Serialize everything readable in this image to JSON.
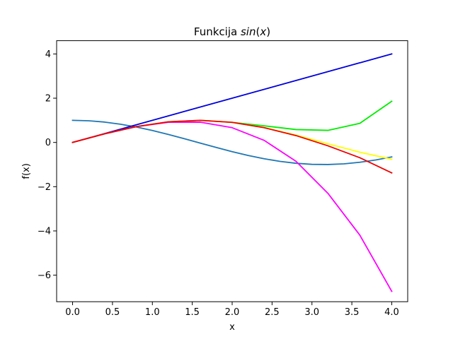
{
  "chart_data": {
    "type": "line",
    "title": {
      "prefix": "Funkcija ",
      "math": "sin",
      "suffix": "(",
      "math_var": "x",
      "close": ")"
    },
    "xlabel": "x",
    "ylabel": "f(x)",
    "xlim": [
      -0.2,
      4.2
    ],
    "ylim": [
      -7.2,
      4.6
    ],
    "x_ticks": [
      0.0,
      0.5,
      1.0,
      1.5,
      2.0,
      2.5,
      3.0,
      3.5,
      4.0
    ],
    "x_tick_labels": [
      "0.0",
      "0.5",
      "1.0",
      "1.5",
      "2.0",
      "2.5",
      "3.0",
      "3.5",
      "4.0"
    ],
    "y_ticks": [
      -6,
      -4,
      -2,
      0,
      2,
      4
    ],
    "y_tick_labels": [
      "−6",
      "−4",
      "−2",
      "0",
      "2",
      "4"
    ],
    "grid": false,
    "legend": "none",
    "series": [
      {
        "color": "#1f77b4",
        "function": "cos",
        "x": [
          0,
          0.2,
          0.4,
          0.6,
          0.8,
          1.0,
          1.2,
          1.4,
          1.6,
          1.8,
          2.0,
          2.2,
          2.4,
          2.6,
          2.8,
          3.0,
          3.2,
          3.4,
          3.6,
          3.8,
          4.0
        ],
        "y": [
          1.0,
          0.98,
          0.921,
          0.825,
          0.697,
          0.54,
          0.362,
          0.17,
          -0.029,
          -0.227,
          -0.416,
          -0.589,
          -0.737,
          -0.857,
          -0.942,
          -0.99,
          -0.998,
          -0.967,
          -0.897,
          -0.791,
          -0.654
        ]
      },
      {
        "color": "#0000dd",
        "x": [
          0,
          4.0
        ],
        "y": [
          0,
          4.0
        ]
      },
      {
        "color": "#00ee00",
        "x": [
          0,
          0.4,
          0.8,
          1.2,
          1.6,
          2.0,
          2.4,
          2.8,
          3.2,
          3.6,
          4.0
        ],
        "y": [
          0,
          0.389,
          0.717,
          0.932,
          1.0,
          0.907,
          0.752,
          0.583,
          0.546,
          0.865,
          1.86
        ]
      },
      {
        "color": "#ffff00",
        "x": [
          0,
          0.4,
          0.8,
          1.2,
          1.6,
          2.0,
          2.4,
          2.8,
          3.2,
          3.6,
          4.0
        ],
        "y": [
          0,
          0.389,
          0.717,
          0.932,
          1.0,
          0.909,
          0.675,
          0.335,
          -0.06,
          -0.44,
          -0.76
        ]
      },
      {
        "color": "#ff00ff",
        "x": [
          0,
          0.4,
          0.8,
          1.2,
          1.6,
          2.0,
          2.4,
          2.8,
          3.2,
          3.6,
          4.0
        ],
        "y": [
          0,
          0.389,
          0.715,
          0.912,
          0.917,
          0.667,
          0.096,
          -0.853,
          -2.3,
          -4.19,
          -6.73
        ]
      },
      {
        "color": "#ee0000",
        "x": [
          0,
          0.4,
          0.8,
          1.2,
          1.6,
          2.0,
          2.4,
          2.8,
          3.2,
          3.6,
          4.0
        ],
        "y": [
          0,
          0.389,
          0.717,
          0.932,
          0.999,
          0.907,
          0.667,
          0.311,
          -0.152,
          -0.691,
          -1.375
        ]
      }
    ]
  }
}
